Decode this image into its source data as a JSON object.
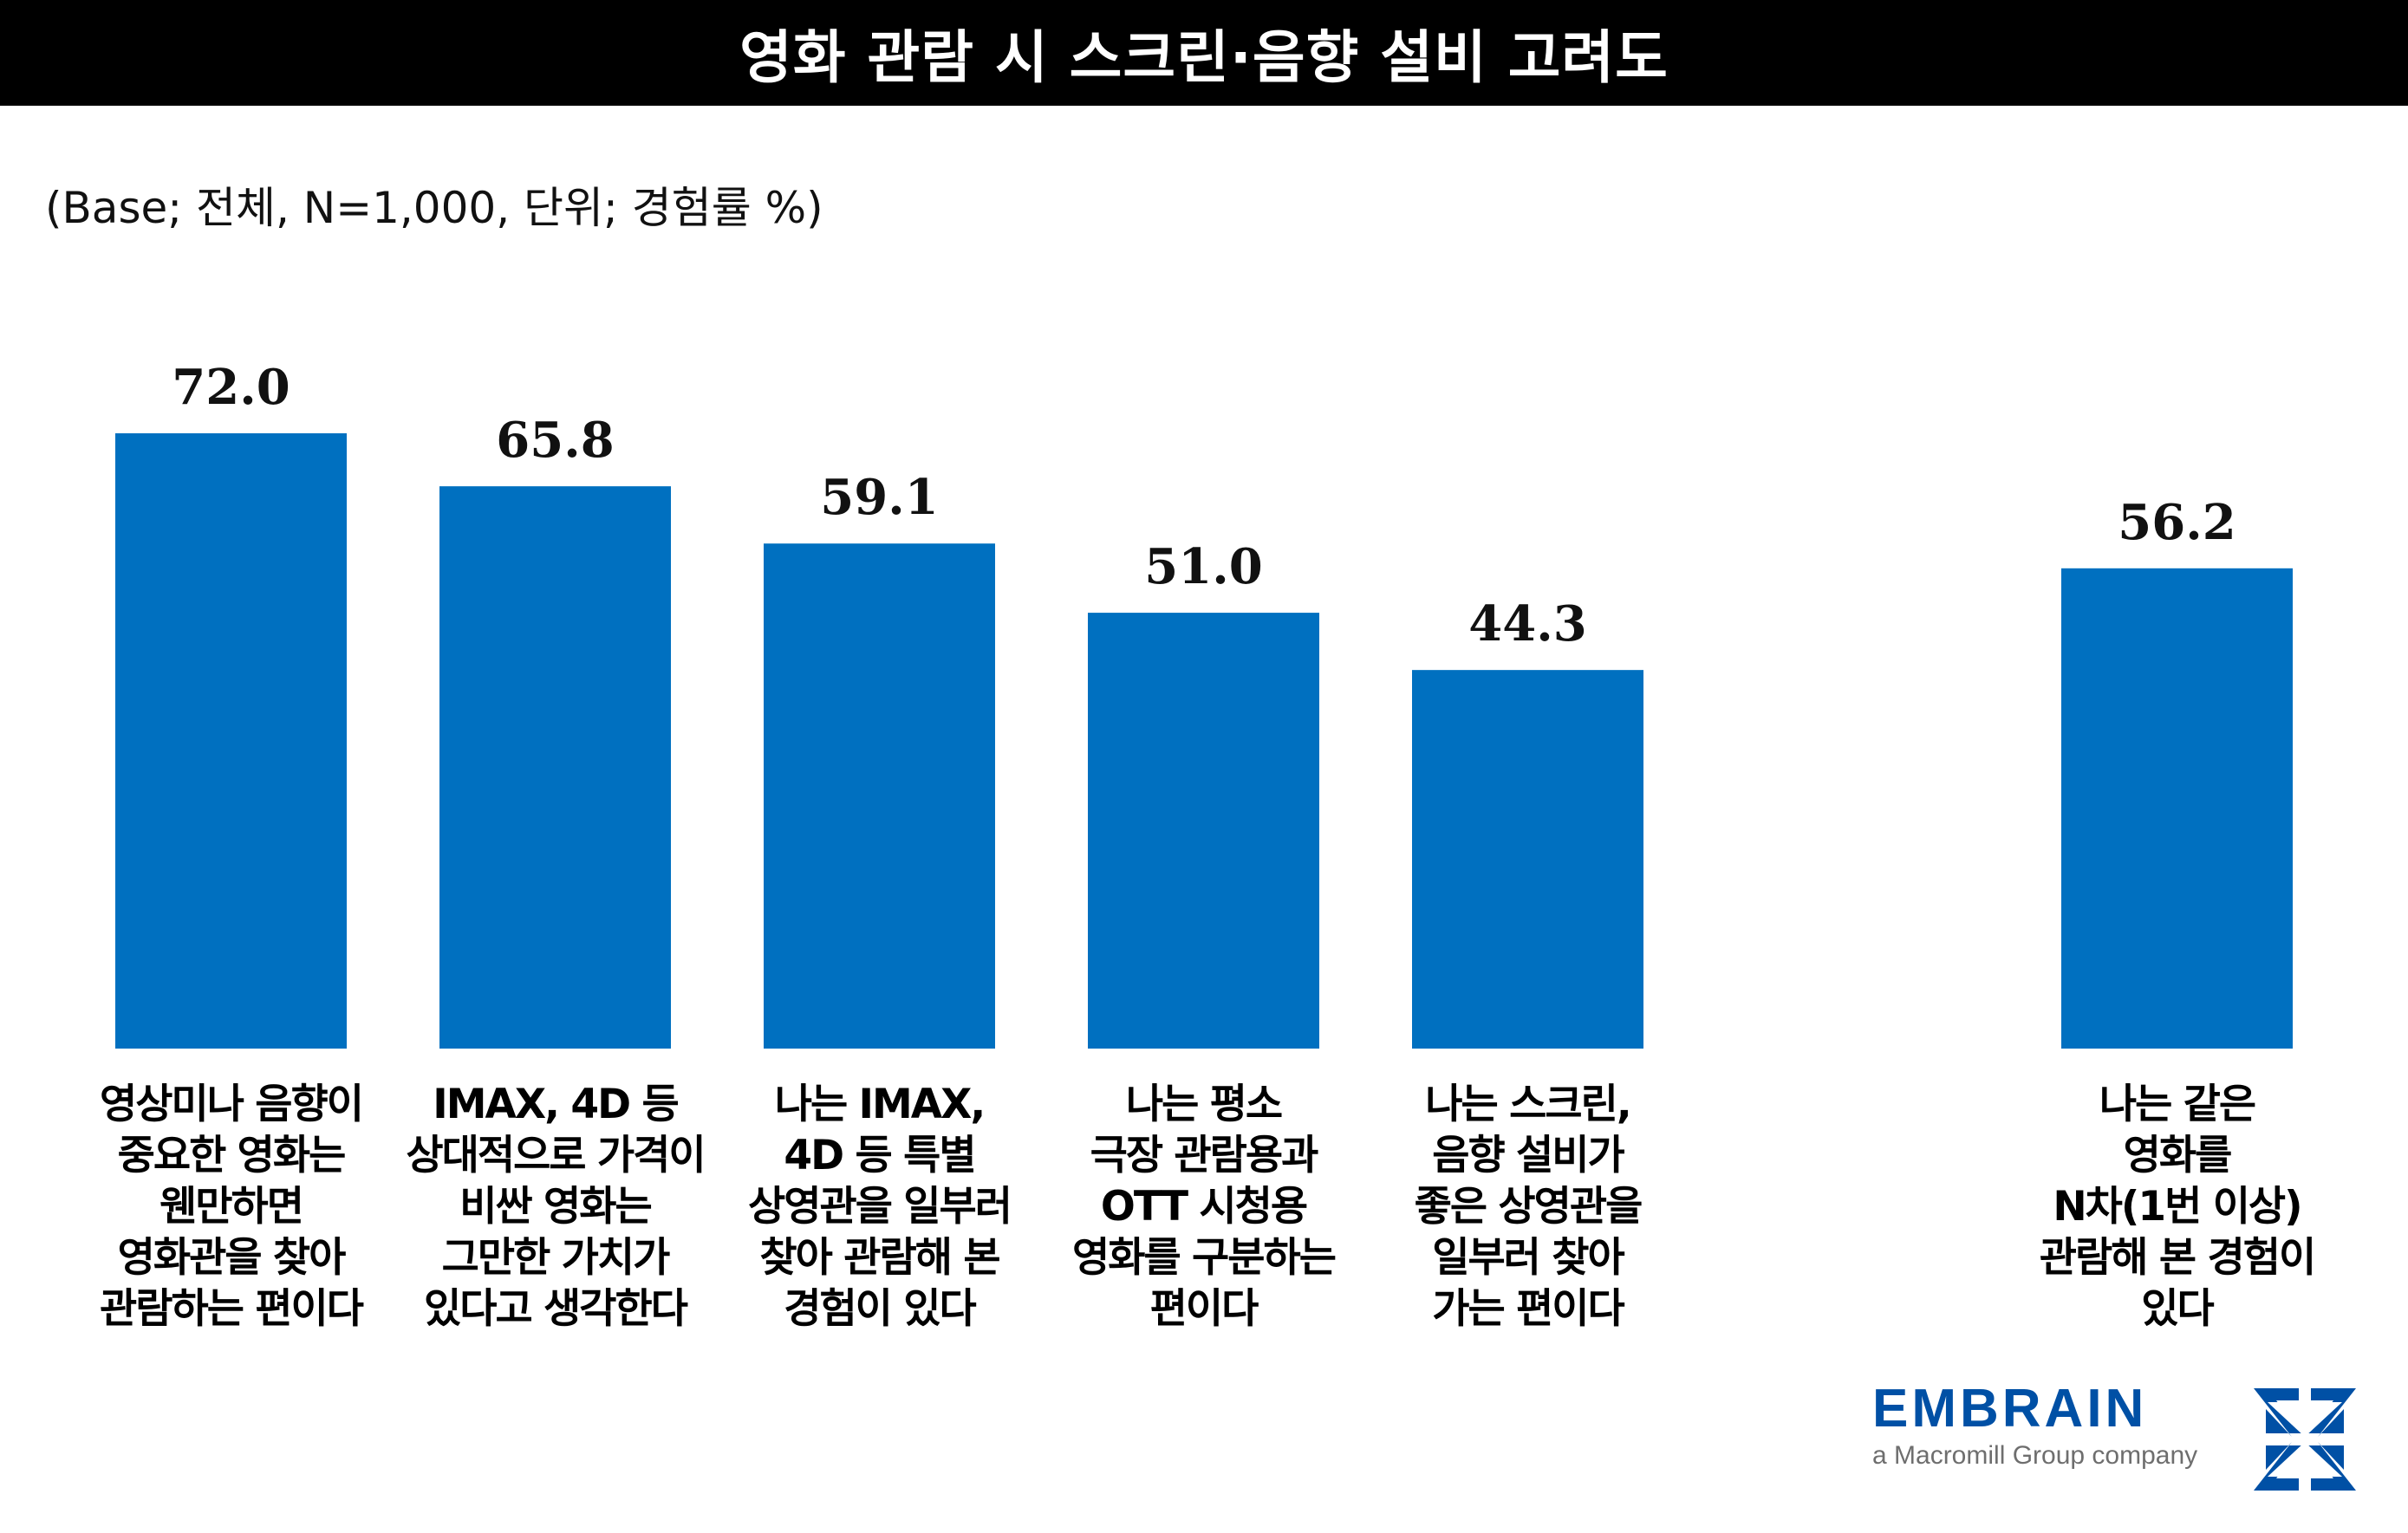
{
  "header": {
    "title": "영화 관람 시 스크린·음향 설비 고려도"
  },
  "subtitle": "(Base; 전체, N=1,000, 단위; 경험률 %)",
  "chart_data": {
    "type": "bar",
    "title": "영화 관람 시 스크린·음향 설비 고려도",
    "xlabel": "",
    "ylabel": "경험률 %",
    "ylim": [
      0,
      72
    ],
    "grid": false,
    "categories": [
      [
        "영상미나 음향이",
        "중요한 영화는",
        "웬만하면",
        "영화관을 찾아",
        "관람하는 편이다"
      ],
      [
        "IMAX, 4D 등",
        "상대적으로 가격이",
        "비싼 영화는",
        "그만한 가치가",
        "있다고 생각한다"
      ],
      [
        "나는 IMAX,",
        "4D 등 특별",
        "상영관을 일부러",
        "찾아 관람해 본",
        "경험이 있다"
      ],
      [
        "나는 평소",
        "극장 관람용과",
        "OTT 시청용",
        "영화를 구분하는",
        "편이다"
      ],
      [
        "나는 스크린,",
        "음향 설비가",
        "좋은 상영관을",
        "일부러 찾아",
        "가는 편이다"
      ],
      [
        "나는 같은",
        "영화를",
        "N차(1번 이상)",
        "관람해 본 경험이",
        "있다"
      ]
    ],
    "values": [
      72.0,
      65.8,
      59.1,
      51.0,
      44.3,
      56.2
    ],
    "value_labels": [
      "72.0",
      "65.8",
      "59.1",
      "51.0",
      "44.3",
      "56.2"
    ],
    "bar_color": "#0070C0"
  },
  "logo": {
    "word": "EMBRAIN",
    "tagline": "a Macromill Group company",
    "color": "#0050A5"
  }
}
